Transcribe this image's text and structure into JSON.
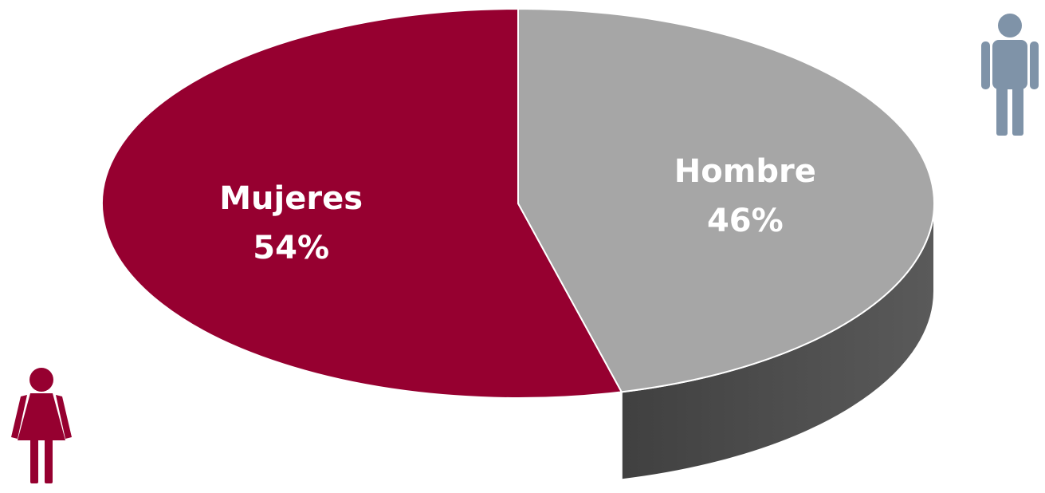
{
  "chart_data": {
    "type": "pie",
    "style": "3d",
    "title": "",
    "slices": [
      {
        "label": "Mujeres",
        "value": 54,
        "display": "54%",
        "color": "#960030",
        "side_dark": "#55000f",
        "side_light": "#7a0020",
        "text_color": "#ffffff"
      },
      {
        "label": "Hombre",
        "value": 46,
        "display": "46%",
        "color": "#a6a6a6",
        "side_dark": "#404040",
        "side_light": "#5a5a5a",
        "text_color": "#ffffff"
      }
    ],
    "legend": "none"
  },
  "icons": {
    "male": {
      "name": "male-person-icon",
      "color": "#7f93a8"
    },
    "female": {
      "name": "female-person-icon",
      "color": "#960030"
    }
  }
}
